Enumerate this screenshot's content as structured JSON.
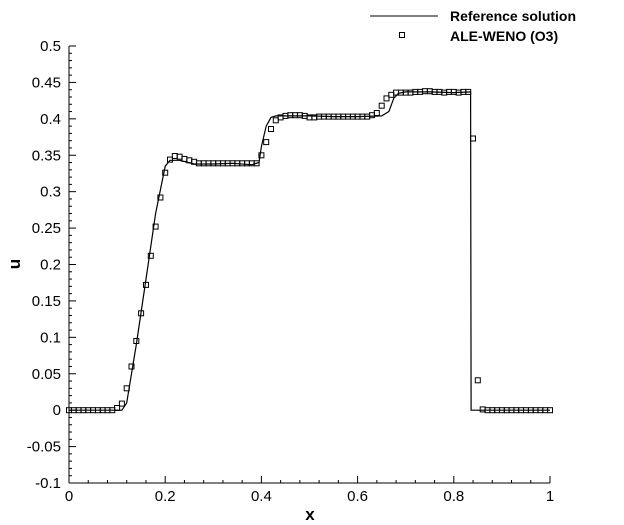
{
  "chart_data": {
    "type": "line",
    "xlabel": "x",
    "ylabel": "u",
    "xlim": [
      0,
      1
    ],
    "ylim": [
      -0.1,
      0.5
    ],
    "x_ticks": [
      0,
      0.2,
      0.4,
      0.6,
      0.8,
      1
    ],
    "x_tick_labels": [
      "0",
      "0.2",
      "0.4",
      "0.6",
      "0.8",
      "1"
    ],
    "y_ticks": [
      -0.1,
      -0.05,
      0,
      0.05,
      0.1,
      0.15,
      0.2,
      0.25,
      0.3,
      0.35,
      0.4,
      0.45,
      0.5
    ],
    "y_tick_labels": [
      "-0.1",
      "-0.05",
      "0",
      "0.05",
      "0.1",
      "0.15",
      "0.2",
      "0.25",
      "0.3",
      "0.35",
      "0.4",
      "0.45",
      "0.5"
    ],
    "grid": false,
    "legend_position": "top-right",
    "series": [
      {
        "name": "Reference solution",
        "style": "line",
        "color": "#000000",
        "x": [
          0,
          0.11,
          0.12,
          0.14,
          0.16,
          0.18,
          0.2,
          0.21,
          0.23,
          0.26,
          0.3,
          0.34,
          0.38,
          0.395,
          0.4,
          0.41,
          0.42,
          0.43,
          0.45,
          0.5,
          0.55,
          0.6,
          0.65,
          0.665,
          0.675,
          0.685,
          0.7,
          0.75,
          0.8,
          0.835,
          0.836,
          0.84,
          0.9,
          1.0
        ],
        "y": [
          0,
          0,
          0.01,
          0.09,
          0.18,
          0.27,
          0.335,
          0.343,
          0.343,
          0.338,
          0.338,
          0.339,
          0.337,
          0.34,
          0.362,
          0.39,
          0.402,
          0.404,
          0.404,
          0.404,
          0.403,
          0.403,
          0.404,
          0.41,
          0.428,
          0.435,
          0.437,
          0.437,
          0.436,
          0.437,
          0,
          0,
          0,
          0
        ]
      },
      {
        "name": "ALE-WENO (O3)",
        "style": "marker",
        "marker": "open-square",
        "color": "#000000",
        "x": [
          0.0,
          0.01,
          0.02,
          0.03,
          0.04,
          0.05,
          0.06,
          0.07,
          0.08,
          0.09,
          0.1,
          0.11,
          0.12,
          0.13,
          0.14,
          0.15,
          0.16,
          0.17,
          0.18,
          0.19,
          0.2,
          0.21,
          0.22,
          0.23,
          0.24,
          0.25,
          0.26,
          0.27,
          0.28,
          0.29,
          0.3,
          0.31,
          0.32,
          0.33,
          0.34,
          0.35,
          0.36,
          0.37,
          0.38,
          0.39,
          0.4,
          0.41,
          0.42,
          0.43,
          0.44,
          0.45,
          0.46,
          0.47,
          0.48,
          0.49,
          0.5,
          0.51,
          0.52,
          0.53,
          0.54,
          0.55,
          0.56,
          0.57,
          0.58,
          0.59,
          0.6,
          0.61,
          0.62,
          0.63,
          0.64,
          0.65,
          0.66,
          0.67,
          0.68,
          0.69,
          0.7,
          0.71,
          0.72,
          0.73,
          0.74,
          0.75,
          0.76,
          0.77,
          0.78,
          0.79,
          0.8,
          0.81,
          0.82,
          0.83,
          0.84,
          0.85,
          0.86,
          0.87,
          0.88,
          0.89,
          0.9,
          0.91,
          0.92,
          0.93,
          0.94,
          0.95,
          0.96,
          0.97,
          0.98,
          0.99,
          1.0
        ],
        "y": [
          0,
          0,
          0,
          0,
          0,
          0,
          0,
          0,
          0,
          0,
          0.003,
          0.009,
          0.03,
          0.06,
          0.095,
          0.133,
          0.172,
          0.212,
          0.252,
          0.292,
          0.326,
          0.344,
          0.349,
          0.348,
          0.345,
          0.343,
          0.341,
          0.339,
          0.339,
          0.339,
          0.339,
          0.339,
          0.339,
          0.339,
          0.339,
          0.339,
          0.339,
          0.339,
          0.339,
          0.339,
          0.35,
          0.368,
          0.386,
          0.398,
          0.402,
          0.404,
          0.405,
          0.405,
          0.405,
          0.404,
          0.402,
          0.402,
          0.403,
          0.403,
          0.403,
          0.403,
          0.403,
          0.403,
          0.403,
          0.403,
          0.403,
          0.403,
          0.403,
          0.405,
          0.408,
          0.418,
          0.428,
          0.433,
          0.436,
          0.436,
          0.436,
          0.436,
          0.437,
          0.437,
          0.438,
          0.438,
          0.437,
          0.437,
          0.436,
          0.437,
          0.437,
          0.436,
          0.437,
          0.437,
          0.373,
          0.041,
          0.001,
          0,
          0,
          0,
          0,
          0,
          0,
          0,
          0,
          0,
          0,
          0,
          0,
          0,
          0
        ]
      }
    ]
  }
}
